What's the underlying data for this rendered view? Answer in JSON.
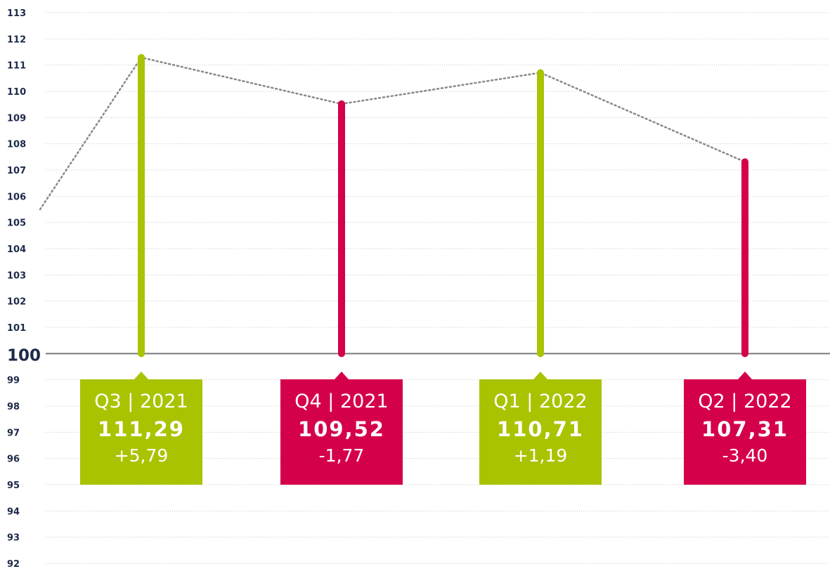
{
  "chart_data": {
    "type": "line",
    "baseline": 100,
    "ylim": [
      92,
      113
    ],
    "ticks": [
      113,
      112,
      111,
      110,
      109,
      108,
      107,
      106,
      105,
      104,
      103,
      102,
      101,
      100,
      99,
      98,
      97,
      96,
      95,
      94,
      93,
      92
    ],
    "points": [
      {
        "period": "Q3 | 2021",
        "value": 111.29,
        "value_label": "111,29",
        "change": "+5,79",
        "color": "#a9c300"
      },
      {
        "period": "Q4 | 2021",
        "value": 109.52,
        "value_label": "109,52",
        "change": "-1,77",
        "color": "#d5004b"
      },
      {
        "period": "Q1 | 2022",
        "value": 110.71,
        "value_label": "110,71",
        "change": "+1,19",
        "color": "#a9c300"
      },
      {
        "period": "Q2 | 2022",
        "value": 107.31,
        "value_label": "107,31",
        "change": "-3,40",
        "color": "#d5004b"
      }
    ],
    "previous_value": 105.5,
    "colors": {
      "up": "#a9c300",
      "down": "#d5004b",
      "axis_text": "#1e2a4a",
      "trend_line": "#888888"
    }
  }
}
